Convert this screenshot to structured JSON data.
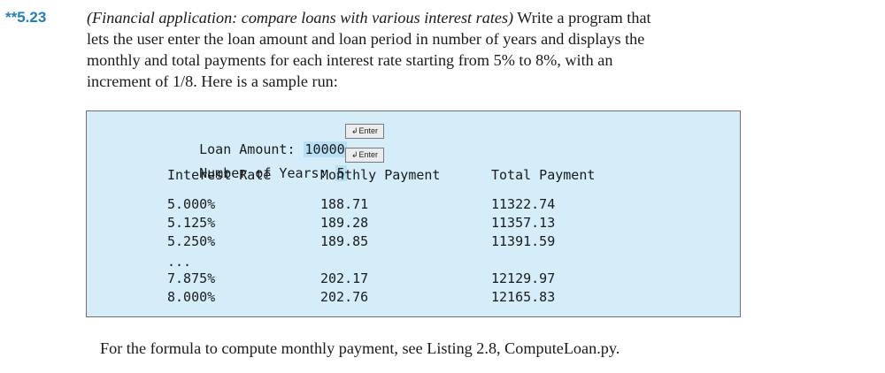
{
  "exercise": {
    "number": "**5.23",
    "topic": "(Financial application: compare loans with various interest rates)",
    "body": " Write a program that lets the user enter the loan amount and loan period in number of years and displays the monthly and total payments for each interest rate starting from 5% to 8%, with an increment of 1/8. Here is a sample run:"
  },
  "sample_run": {
    "loan_prompt": "Loan Amount: ",
    "loan_value": "10000",
    "years_prompt": "Number of Years: ",
    "years_value": "5",
    "enter_label": "Enter",
    "headers": [
      "Interest Rate",
      "Monthly Payment",
      "Total Payment"
    ],
    "rows": [
      [
        "5.000%",
        "188.71",
        "11322.74"
      ],
      [
        "5.125%",
        "189.28",
        "11357.13"
      ],
      [
        "5.250%",
        "189.85",
        "11391.59"
      ],
      [
        "...",
        "",
        ""
      ],
      [
        "7.875%",
        "202.17",
        "12129.97"
      ],
      [
        "8.000%",
        "202.76",
        "12165.83"
      ]
    ]
  },
  "footer": {
    "text": "For the formula to compute monthly payment, see Listing 2.8, ComputeLoan.py."
  }
}
